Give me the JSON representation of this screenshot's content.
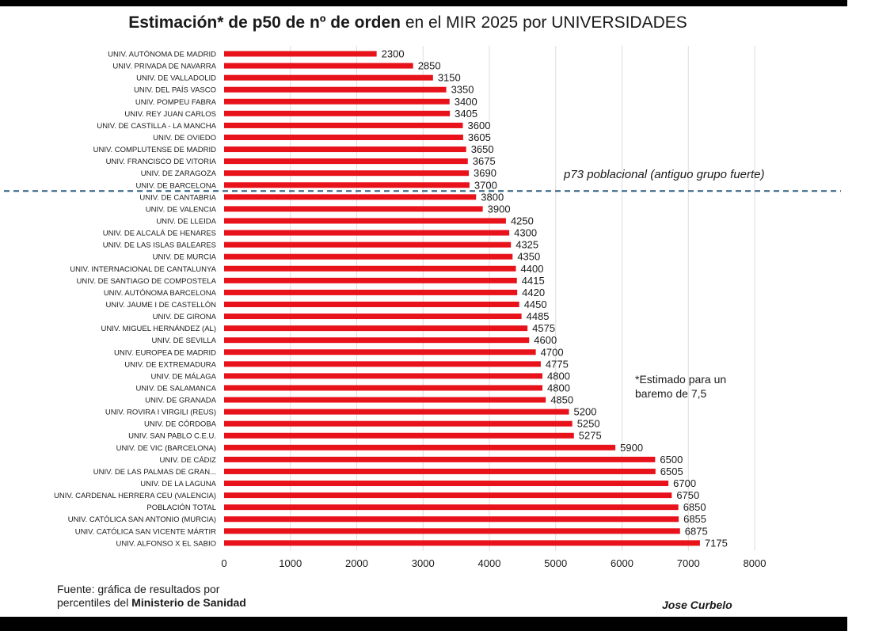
{
  "title": {
    "bold": "Estimación* de p50 de nº de orden",
    "rest": "en el MIR 2025 por UNIVERSIDADES"
  },
  "reference_line_label": "p73 poblacional (antiguo grupo fuerte)",
  "note": "*Estimado para un baremo de 7,5",
  "source": {
    "line1": "Fuente: gráfica de resultados por",
    "line2_prefix": "percentiles del",
    "line2_bold": "Ministerio de Sanidad"
  },
  "author": "Jose Curbelo",
  "colors": {
    "bar": "#e8121b",
    "reference_line": "#2e5f80",
    "grid": "#dddddd"
  },
  "chart_data": {
    "type": "bar",
    "orientation": "horizontal",
    "title": "Estimación* de p50 de nº de orden en el MIR 2025 por UNIVERSIDADES",
    "xlim": [
      0,
      8000
    ],
    "x_ticks": [
      0,
      1000,
      2000,
      3000,
      4000,
      5000,
      6000,
      7000,
      8000
    ],
    "grid": "vertical",
    "reference_line": {
      "label": "p73 poblacional (antiguo grupo fuerte)",
      "between": [
        "UNIV. DE BARCELONA",
        "UNIV. DE CANTABRIA"
      ]
    },
    "categories": [
      "UNIV. AUTÓNOMA DE MADRID",
      "UNIV. PRIVADA DE NAVARRA",
      "UNIV. DE VALLADOLID",
      "UNIV. DEL PAÍS VASCO",
      "UNIV. POMPEU FABRA",
      "UNIV. REY JUAN CARLOS",
      "UNIV. DE CASTILLA - LA MANCHA",
      "UNIV. DE OVIEDO",
      "UNIV. COMPLUTENSE DE MADRID",
      "UNIV. FRANCISCO DE VITORIA",
      "UNIV. DE ZARAGOZA",
      "UNIV. DE BARCELONA",
      "UNIV. DE CANTABRIA",
      "UNIV. DE VALENCIA",
      "UNIV. DE LLEIDA",
      "UNIV. DE ALCALÁ DE HENARES",
      "UNIV. DE LAS ISLAS BALEARES",
      "UNIV. DE MURCIA",
      "UNIV. INTERNACIONAL DE CANTALUNYA",
      "UNIV. DE SANTIAGO DE COMPOSTELA",
      "UNIV. AUTÓNOMA BARCELONA",
      "UNIV. JAUME I DE CASTELLÓN",
      "UNIV. DE GIRONA",
      "UNIV. MIGUEL HERNÁNDEZ (AL)",
      "UNIV. DE SEVILLA",
      "UNIV. EUROPEA DE MADRID",
      "UNIV. DE EXTREMADURA",
      "UNIV. DE MÁLAGA",
      "UNIV. DE SALAMANCA",
      "UNIV. DE GRANADA",
      "UNIV. ROVIRA I VIRGILI (REUS)",
      "UNIV. DE CÓRDOBA",
      "UNIV. SAN PABLO C.E.U.",
      "UNIV. DE VIC (BARCELONA)",
      "UNIV. DE CÁDIZ",
      "UNIV. DE LAS PALMAS DE GRAN...",
      "UNIV. DE LA LAGUNA",
      "UNIV. CARDENAL HERRERA CEU (VALENCIA)",
      "POBLACIÓN TOTAL",
      "UNIV. CATÓLICA SAN ANTONIO (MURCIA)",
      "UNIV. CATÓLICA SAN VICENTE MÁRTIR",
      "UNIV. ALFONSO X EL SABIO"
    ],
    "values": [
      2300,
      2850,
      3150,
      3350,
      3400,
      3405,
      3600,
      3605,
      3650,
      3675,
      3690,
      3700,
      3800,
      3900,
      4250,
      4300,
      4325,
      4350,
      4400,
      4415,
      4420,
      4450,
      4485,
      4575,
      4600,
      4700,
      4775,
      4800,
      4800,
      4850,
      5200,
      5250,
      5275,
      5900,
      6500,
      6505,
      6700,
      6750,
      6850,
      6855,
      6875,
      7175
    ]
  }
}
